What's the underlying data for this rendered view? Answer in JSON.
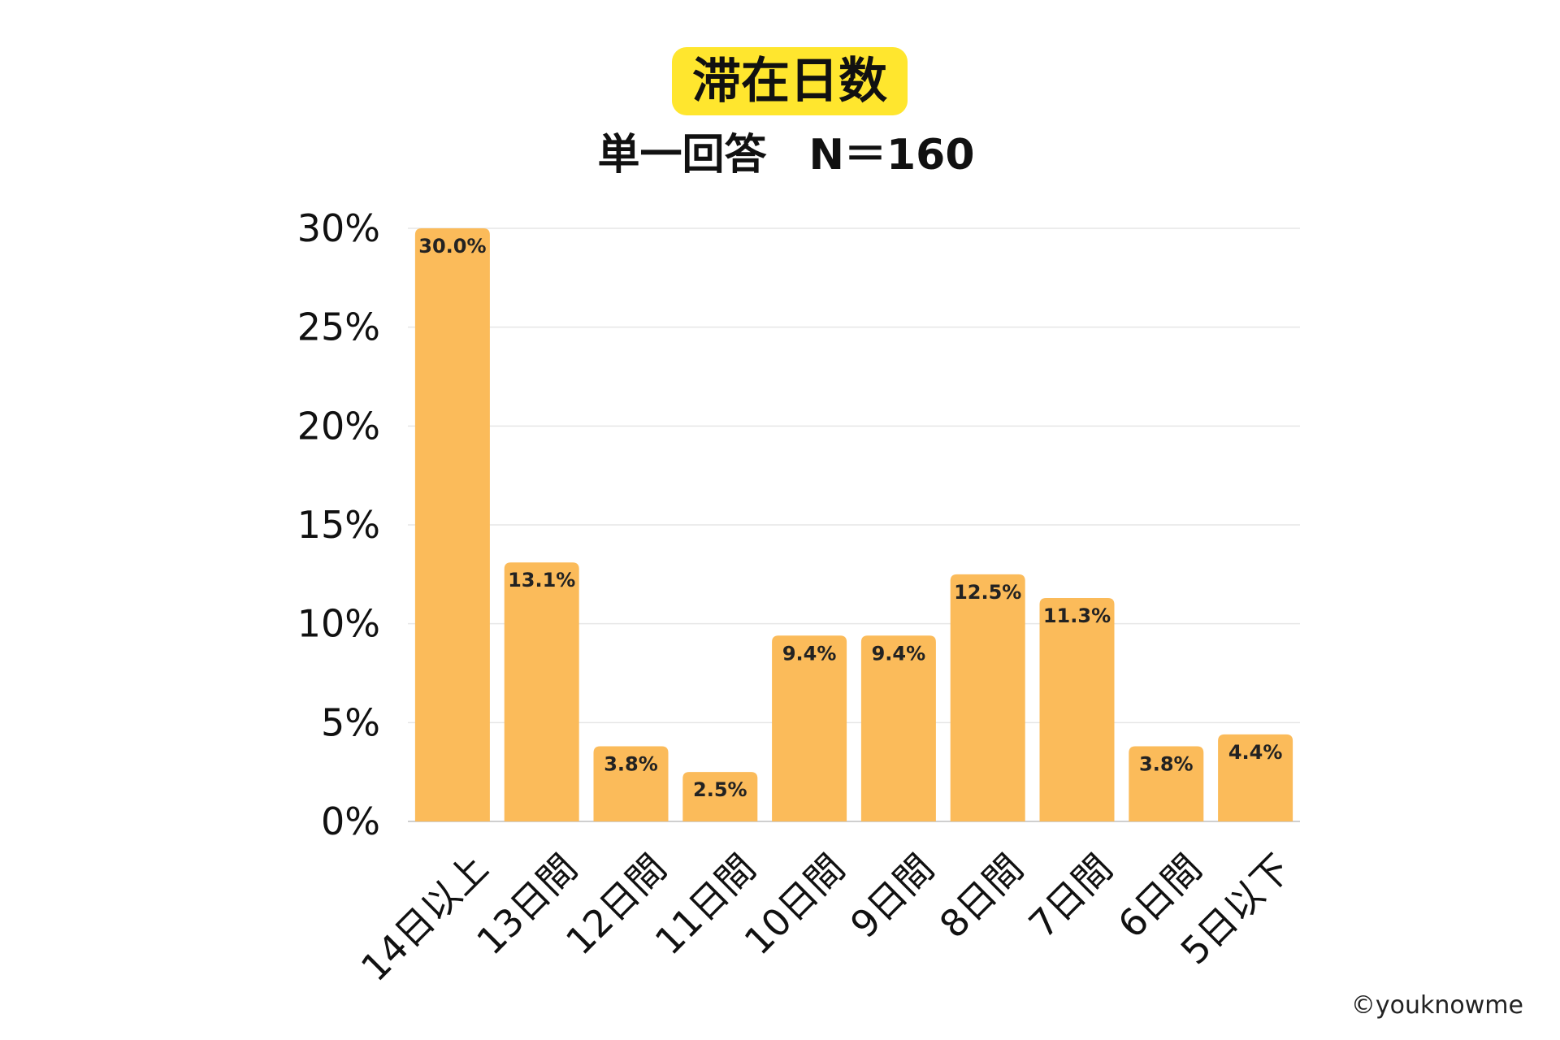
{
  "header": {
    "title": "滞在日数",
    "subtitle": "単一回答　N＝160",
    "title_badge_color": "#ffe62e"
  },
  "footer": {
    "copyright": "©youknowme"
  },
  "colors": {
    "bar": "#fbbb5a",
    "grid": "#e6e6e6",
    "axis": "#cfcfcf"
  },
  "chart_data": {
    "type": "bar",
    "title": "滞在日数",
    "subtitle": "単一回答　N＝160",
    "xlabel": "",
    "ylabel": "",
    "categories": [
      "14日以上",
      "13日間",
      "12日間",
      "11日間",
      "10日間",
      "9日間",
      "8日間",
      "7日間",
      "6日間",
      "5日以下"
    ],
    "values": [
      30.0,
      13.1,
      3.8,
      2.5,
      9.4,
      9.4,
      12.5,
      11.3,
      3.8,
      4.4
    ],
    "value_labels": [
      "30.0%",
      "13.1%",
      "3.8%",
      "2.5%",
      "9.4%",
      "9.4%",
      "12.5%",
      "11.3%",
      "3.8%",
      "4.4%"
    ],
    "ylim": [
      0,
      30
    ],
    "yticks": [
      0,
      5,
      10,
      15,
      20,
      25,
      30
    ],
    "ytick_labels": [
      "0%",
      "5%",
      "10%",
      "15%",
      "20%",
      "25%",
      "30%"
    ],
    "grid": true,
    "legend": "none",
    "x_label_rotation_deg": -45
  }
}
